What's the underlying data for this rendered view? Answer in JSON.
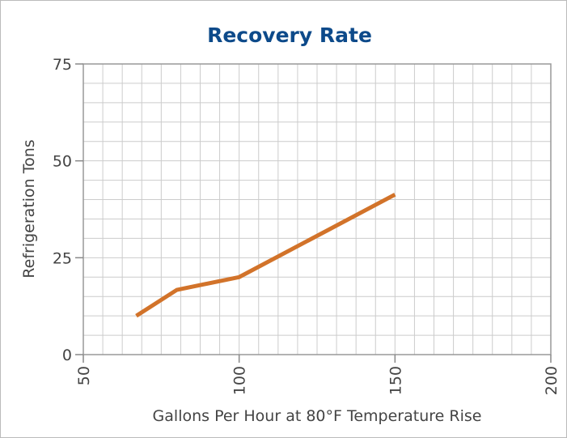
{
  "chart_data": {
    "type": "line",
    "title": "Recovery Rate",
    "x_label": "Gallons Per Hour at 80°F Temperature Rise",
    "y_label": "Refrigeration Tons",
    "x": [
      67,
      80,
      100,
      150
    ],
    "series": [
      {
        "name": "Recovery Rate",
        "color": "#d2732a",
        "values": [
          10,
          16.7,
          20,
          41.3
        ]
      }
    ],
    "xlim": [
      50,
      200
    ],
    "xticks": [
      50,
      100,
      150,
      200
    ],
    "ylim": [
      0,
      75
    ],
    "yticks": [
      0,
      25,
      50,
      75
    ],
    "grid": true,
    "minor_grid": {
      "x": 6.25,
      "y": 5
    }
  }
}
